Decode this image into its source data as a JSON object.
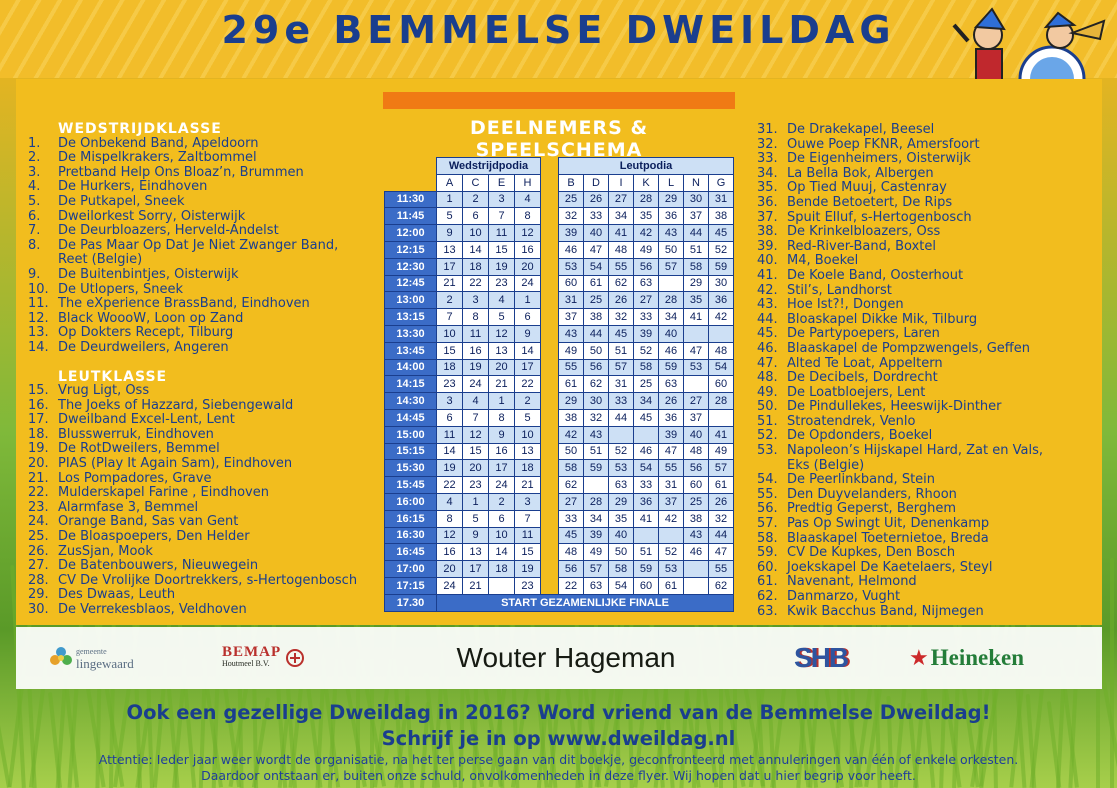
{
  "title": "29e BEMMELSE DWEILDAG",
  "schedule_title": "DEELNEMERS & SPEELSCHEMA",
  "left_list": {
    "heading1": "WEDSTRIJDKLASSE",
    "items1": [
      {
        "n": "1.",
        "name": "De Onbekend Band, Apeldoorn"
      },
      {
        "n": "2.",
        "name": "De Mispelkrakers, Zaltbommel"
      },
      {
        "n": "3.",
        "name": "Pretband Help Ons Bloaz’n, Brummen"
      },
      {
        "n": "4.",
        "name": "De Hurkers, Eindhoven"
      },
      {
        "n": "5.",
        "name": "De Putkapel, Sneek"
      },
      {
        "n": "6.",
        "name": "Dweilorkest Sorry, Oisterwijk"
      },
      {
        "n": "7.",
        "name": "De Deurbloazers, Herveld-Andelst"
      },
      {
        "n": "8.",
        "name": "De Pas Maar Op Dat Je Niet Zwanger  Band,"
      },
      {
        "n": "",
        "name": "Reet (Belgie)"
      },
      {
        "n": "9.",
        "name": "De Buitenbintjes, Oisterwijk"
      },
      {
        "n": "10.",
        "name": "De Utlopers, Sneek"
      },
      {
        "n": "11.",
        "name": "The eXperience BrassBand, Eindhoven"
      },
      {
        "n": "12.",
        "name": "Black WoooW, Loon op Zand"
      },
      {
        "n": "13.",
        "name": "Op Dokters Recept, Tilburg"
      },
      {
        "n": "14.",
        "name": "De Deurdweilers, Angeren"
      }
    ],
    "heading2": "LEUTKLASSE",
    "items2": [
      {
        "n": "15.",
        "name": "Vrug Ligt, Oss"
      },
      {
        "n": "16.",
        "name": "The Joeks of Hazzard, Siebengewald"
      },
      {
        "n": "17.",
        "name": "Dweilband Excel-Lent, Lent"
      },
      {
        "n": "18.",
        "name": "Blusswerruk, Eindhoven"
      },
      {
        "n": "19.",
        "name": "De RotDweilers, Bemmel"
      },
      {
        "n": "20.",
        "name": "PIAS (Play It Again Sam), Eindhoven"
      },
      {
        "n": "21.",
        "name": "Los Pompadores, Grave"
      },
      {
        "n": "22.",
        "name": "Mulderskapel Farine , Eindhoven"
      },
      {
        "n": "23.",
        "name": "Alarmfase 3, Bemmel"
      },
      {
        "n": "24.",
        "name": "Orange Band, Sas van Gent"
      },
      {
        "n": "25.",
        "name": "De Bloaspoepers, Den Helder"
      },
      {
        "n": "26.",
        "name": "ZusSjan, Mook"
      },
      {
        "n": "27.",
        "name": "De Batenbouwers, Nieuwegein"
      },
      {
        "n": "28.",
        "name": "CV De Vrolijke Doortrekkers, s-Hertogenbosch"
      },
      {
        "n": "29.",
        "name": "Des Dwaas, Leuth"
      },
      {
        "n": "30.",
        "name": "De Verrekesblaos, Veldhoven"
      }
    ]
  },
  "right_list": [
    {
      "n": "31.",
      "name": "De Drakekapel, Beesel"
    },
    {
      "n": "32.",
      "name": "Ouwe Poep FKNR, Amersfoort"
    },
    {
      "n": "33.",
      "name": "De Eigenheimers, Oisterwijk"
    },
    {
      "n": "34.",
      "name": "La Bella Bok, Albergen"
    },
    {
      "n": "35.",
      "name": "Op Tied Muuj, Castenray"
    },
    {
      "n": "36.",
      "name": "Bende Betoetert, De Rips"
    },
    {
      "n": "37.",
      "name": "Spuit Elluf, s-Hertogenbosch"
    },
    {
      "n": "38.",
      "name": "De Krinkelbloazers, Oss"
    },
    {
      "n": "39.",
      "name": "Red-River-Band, Boxtel"
    },
    {
      "n": "40.",
      "name": "M4, Boekel"
    },
    {
      "n": "41.",
      "name": "De Koele Band, Oosterhout"
    },
    {
      "n": "42.",
      "name": "Stil’s, Landhorst"
    },
    {
      "n": "43.",
      "name": "Hoe Ist?!, Dongen"
    },
    {
      "n": "44.",
      "name": "Bloaskapel Dikke Mik, Tilburg"
    },
    {
      "n": "45.",
      "name": "De Partypoepers, Laren"
    },
    {
      "n": "46.",
      "name": "Blaaskapel de Pompzwengels, Geffen"
    },
    {
      "n": "47.",
      "name": "Alted Te Loat, Appeltern"
    },
    {
      "n": "48.",
      "name": "De Decibels, Dordrecht"
    },
    {
      "n": "49.",
      "name": "De Loatbloejers, Lent"
    },
    {
      "n": "50.",
      "name": "De Pindullekes, Heeswijk-Dinther"
    },
    {
      "n": "51.",
      "name": "Stroatendrek, Venlo"
    },
    {
      "n": "52.",
      "name": "De Opdonders, Boekel"
    },
    {
      "n": "53.",
      "name": "Napoleon’s Hijskapel Hard, Zat en Vals,"
    },
    {
      "n": "",
      "name": "Eks (Belgie)"
    },
    {
      "n": "54.",
      "name": "De Peerlinkband, Stein"
    },
    {
      "n": "55.",
      "name": "Den Duyvelanders, Rhoon"
    },
    {
      "n": "56.",
      "name": "Predtig Geperst, Berghem"
    },
    {
      "n": "57.",
      "name": "Pas Op Swingt Uit, Denenkamp"
    },
    {
      "n": "58.",
      "name": "Blaaskapel Toeternietoe, Breda"
    },
    {
      "n": "59.",
      "name": "CV De Kupkes, Den Bosch"
    },
    {
      "n": "60.",
      "name": "Joekskapel De Kaetelaers, Steyl"
    },
    {
      "n": "61.",
      "name": "Navenant, Helmond"
    },
    {
      "n": "62.",
      "name": "Danmarzo, Vught"
    },
    {
      "n": "63.",
      "name": "Kwik Bacchus Band, Nijmegen"
    }
  ],
  "table": {
    "group1": "Wedstrijdpodia",
    "group2": "Leutpodia",
    "cols1": [
      "A",
      "C",
      "E",
      "H"
    ],
    "cols2": [
      "B",
      "D",
      "I",
      "K",
      "L",
      "N",
      "G"
    ],
    "rows": [
      {
        "t": "11:30",
        "a": [
          "1",
          "2",
          "3",
          "4"
        ],
        "b": [
          "25",
          "26",
          "27",
          "28",
          "29",
          "30",
          "31"
        ]
      },
      {
        "t": "11:45",
        "a": [
          "5",
          "6",
          "7",
          "8"
        ],
        "b": [
          "32",
          "33",
          "34",
          "35",
          "36",
          "37",
          "38"
        ]
      },
      {
        "t": "12:00",
        "a": [
          "9",
          "10",
          "11",
          "12"
        ],
        "b": [
          "39",
          "40",
          "41",
          "42",
          "43",
          "44",
          "45"
        ]
      },
      {
        "t": "12:15",
        "a": [
          "13",
          "14",
          "15",
          "16"
        ],
        "b": [
          "46",
          "47",
          "48",
          "49",
          "50",
          "51",
          "52"
        ]
      },
      {
        "t": "12:30",
        "a": [
          "17",
          "18",
          "19",
          "20"
        ],
        "b": [
          "53",
          "54",
          "55",
          "56",
          "57",
          "58",
          "59"
        ]
      },
      {
        "t": "12:45",
        "a": [
          "21",
          "22",
          "23",
          "24"
        ],
        "b": [
          "60",
          "61",
          "62",
          "63",
          "",
          "29",
          "30"
        ]
      },
      {
        "t": "13:00",
        "a": [
          "2",
          "3",
          "4",
          "1"
        ],
        "b": [
          "31",
          "25",
          "26",
          "27",
          "28",
          "35",
          "36"
        ]
      },
      {
        "t": "13:15",
        "a": [
          "7",
          "8",
          "5",
          "6"
        ],
        "b": [
          "37",
          "38",
          "32",
          "33",
          "34",
          "41",
          "42"
        ]
      },
      {
        "t": "13:30",
        "a": [
          "10",
          "11",
          "12",
          "9"
        ],
        "b": [
          "43",
          "44",
          "45",
          "39",
          "40",
          "",
          ""
        ]
      },
      {
        "t": "13:45",
        "a": [
          "15",
          "16",
          "13",
          "14"
        ],
        "b": [
          "49",
          "50",
          "51",
          "52",
          "46",
          "47",
          "48"
        ]
      },
      {
        "t": "14:00",
        "a": [
          "18",
          "19",
          "20",
          "17"
        ],
        "b": [
          "55",
          "56",
          "57",
          "58",
          "59",
          "53",
          "54"
        ]
      },
      {
        "t": "14:15",
        "a": [
          "23",
          "24",
          "21",
          "22"
        ],
        "b": [
          "61",
          "62",
          "31",
          "25",
          "63",
          "",
          "60"
        ]
      },
      {
        "t": "14:30",
        "a": [
          "3",
          "4",
          "1",
          "2"
        ],
        "b": [
          "29",
          "30",
          "33",
          "34",
          "26",
          "27",
          "28"
        ]
      },
      {
        "t": "14:45",
        "a": [
          "6",
          "7",
          "8",
          "5"
        ],
        "b": [
          "38",
          "32",
          "44",
          "45",
          "36",
          "37",
          ""
        ]
      },
      {
        "t": "15:00",
        "a": [
          "11",
          "12",
          "9",
          "10"
        ],
        "b": [
          "42",
          "43",
          "",
          "",
          "39",
          "40",
          "41"
        ]
      },
      {
        "t": "15:15",
        "a": [
          "14",
          "15",
          "16",
          "13"
        ],
        "b": [
          "50",
          "51",
          "52",
          "46",
          "47",
          "48",
          "49"
        ]
      },
      {
        "t": "15:30",
        "a": [
          "19",
          "20",
          "17",
          "18"
        ],
        "b": [
          "58",
          "59",
          "53",
          "54",
          "55",
          "56",
          "57"
        ]
      },
      {
        "t": "15:45",
        "a": [
          "22",
          "23",
          "24",
          "21"
        ],
        "b": [
          "62",
          "",
          "63",
          "33",
          "31",
          "60",
          "61"
        ]
      },
      {
        "t": "16:00",
        "a": [
          "4",
          "1",
          "2",
          "3"
        ],
        "b": [
          "27",
          "28",
          "29",
          "36",
          "37",
          "25",
          "26"
        ]
      },
      {
        "t": "16:15",
        "a": [
          "8",
          "5",
          "6",
          "7"
        ],
        "b": [
          "33",
          "34",
          "35",
          "41",
          "42",
          "38",
          "32"
        ]
      },
      {
        "t": "16:30",
        "a": [
          "12",
          "9",
          "10",
          "11"
        ],
        "b": [
          "45",
          "39",
          "40",
          "",
          "",
          "43",
          "44"
        ]
      },
      {
        "t": "16:45",
        "a": [
          "16",
          "13",
          "14",
          "15"
        ],
        "b": [
          "48",
          "49",
          "50",
          "51",
          "52",
          "46",
          "47"
        ]
      },
      {
        "t": "17:00",
        "a": [
          "20",
          "17",
          "18",
          "19"
        ],
        "b": [
          "56",
          "57",
          "58",
          "59",
          "53",
          "",
          "55"
        ]
      },
      {
        "t": "17:15",
        "a": [
          "24",
          "21",
          "",
          "23"
        ],
        "b": [
          "22",
          "63",
          "54",
          "60",
          "61",
          "",
          "62"
        ]
      }
    ],
    "final_time": "17.30",
    "final_label": "START GEZAMENLIJKE FINALE"
  },
  "sponsors": {
    "s1a": "gemeente",
    "s1b": "lingewaard",
    "s2a": "BEMAP",
    "s2b": "Houtmeel B.V.",
    "s3": "Wouter Hageman",
    "s4": "SHB",
    "s5": "Heineken"
  },
  "footer": {
    "line1": "Ook een gezellige Dweildag in 2016? Word vriend van de Bemmelse Dweildag!",
    "line2": "Schrijf je in op www.dweildag.nl",
    "notice1": "Attentie: Ieder jaar weer wordt de organisatie, na het ter perse gaan van dit boekje, geconfronteerd met annuleringen van één of enkele orkesten.",
    "notice2": "Daardoor ontstaan er, buiten onze schuld, onvolkomenheden in deze flyer. Wij hopen dat u hier begrip voor heeft."
  },
  "colors": {
    "title": "#1a3e8e",
    "panel": "#f2bd1e",
    "orange_bar": "#f07a14",
    "time_cell": "#3b6cc7",
    "cell_light": "#cde0f5"
  }
}
